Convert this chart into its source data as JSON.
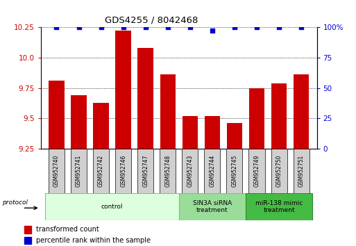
{
  "title": "GDS4255 / 8042468",
  "samples": [
    "GSM952740",
    "GSM952741",
    "GSM952742",
    "GSM952746",
    "GSM952747",
    "GSM952748",
    "GSM952743",
    "GSM952744",
    "GSM952745",
    "GSM952749",
    "GSM952750",
    "GSM952751"
  ],
  "bar_values": [
    9.81,
    9.69,
    9.63,
    10.22,
    10.08,
    9.86,
    9.52,
    9.52,
    9.46,
    9.75,
    9.79,
    9.86
  ],
  "percentile_values": [
    100,
    100,
    100,
    100,
    100,
    100,
    100,
    97,
    100,
    100,
    100,
    100
  ],
  "bar_color": "#cc0000",
  "percentile_color": "#0000cc",
  "ylim_left": [
    9.25,
    10.25
  ],
  "ylim_right": [
    0,
    100
  ],
  "yticks_left": [
    9.25,
    9.5,
    9.75,
    10.0,
    10.25
  ],
  "yticks_right": [
    0,
    25,
    50,
    75,
    100
  ],
  "groups": [
    {
      "label": "control",
      "start": 0,
      "end": 6,
      "color": "#ddffdd",
      "border": "#88bb88"
    },
    {
      "label": "SIN3A siRNA\ntreatment",
      "start": 6,
      "end": 9,
      "color": "#99dd99",
      "border": "#88bb88"
    },
    {
      "label": "miR-138 mimic\ntreatment",
      "start": 9,
      "end": 12,
      "color": "#44bb44",
      "border": "#338833"
    }
  ],
  "legend_items": [
    {
      "label": "transformed count",
      "color": "#cc0000"
    },
    {
      "label": "percentile rank within the sample",
      "color": "#0000cc"
    }
  ],
  "protocol_label": "protocol",
  "bar_width": 0.7
}
